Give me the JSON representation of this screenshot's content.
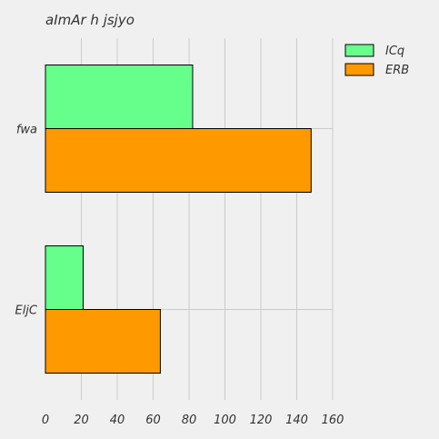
{
  "chart_data": {
    "type": "bar",
    "orientation": "horizontal",
    "title": "aImAr h jsjyo",
    "xlabel": "",
    "ylabel": "",
    "categories": [
      "fwa",
      "EljC"
    ],
    "series": [
      {
        "name": "ICq",
        "values": [
          82,
          21
        ],
        "color": "#66ff8c"
      },
      {
        "name": "ERB",
        "values": [
          148,
          64
        ],
        "color": "#ff9900"
      }
    ],
    "xlim": [
      0,
      160
    ],
    "xticks": [
      0,
      20,
      40,
      60,
      80,
      100,
      120,
      140,
      160
    ],
    "grid": true,
    "legend_position": "top-right"
  }
}
